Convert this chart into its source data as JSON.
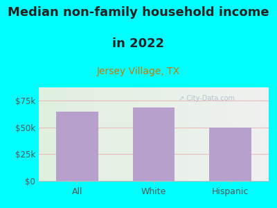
{
  "title_line1": "Median non-family household income",
  "title_line2": "in 2022",
  "subtitle": "Jersey Village, TX",
  "categories": [
    "All",
    "White",
    "Hispanic"
  ],
  "values": [
    65000,
    68500,
    50000
  ],
  "bar_color": "#b8a0cc",
  "background_color": "#00ffff",
  "plot_bg_left": "#dff0df",
  "plot_bg_right": "#f0f0f0",
  "title_fontsize": 13,
  "subtitle_fontsize": 10,
  "subtitle_color": "#cc7700",
  "tick_color": "#555555",
  "ylim": [
    0,
    87500
  ],
  "yticks": [
    0,
    25000,
    50000,
    75000
  ],
  "ytick_labels": [
    "$0",
    "$25k",
    "$50k",
    "$75k"
  ],
  "watermark": "↗ City-Data.com",
  "grid_color": "#e8b0b0",
  "grid_alpha": 0.8,
  "title_color": "#222222"
}
